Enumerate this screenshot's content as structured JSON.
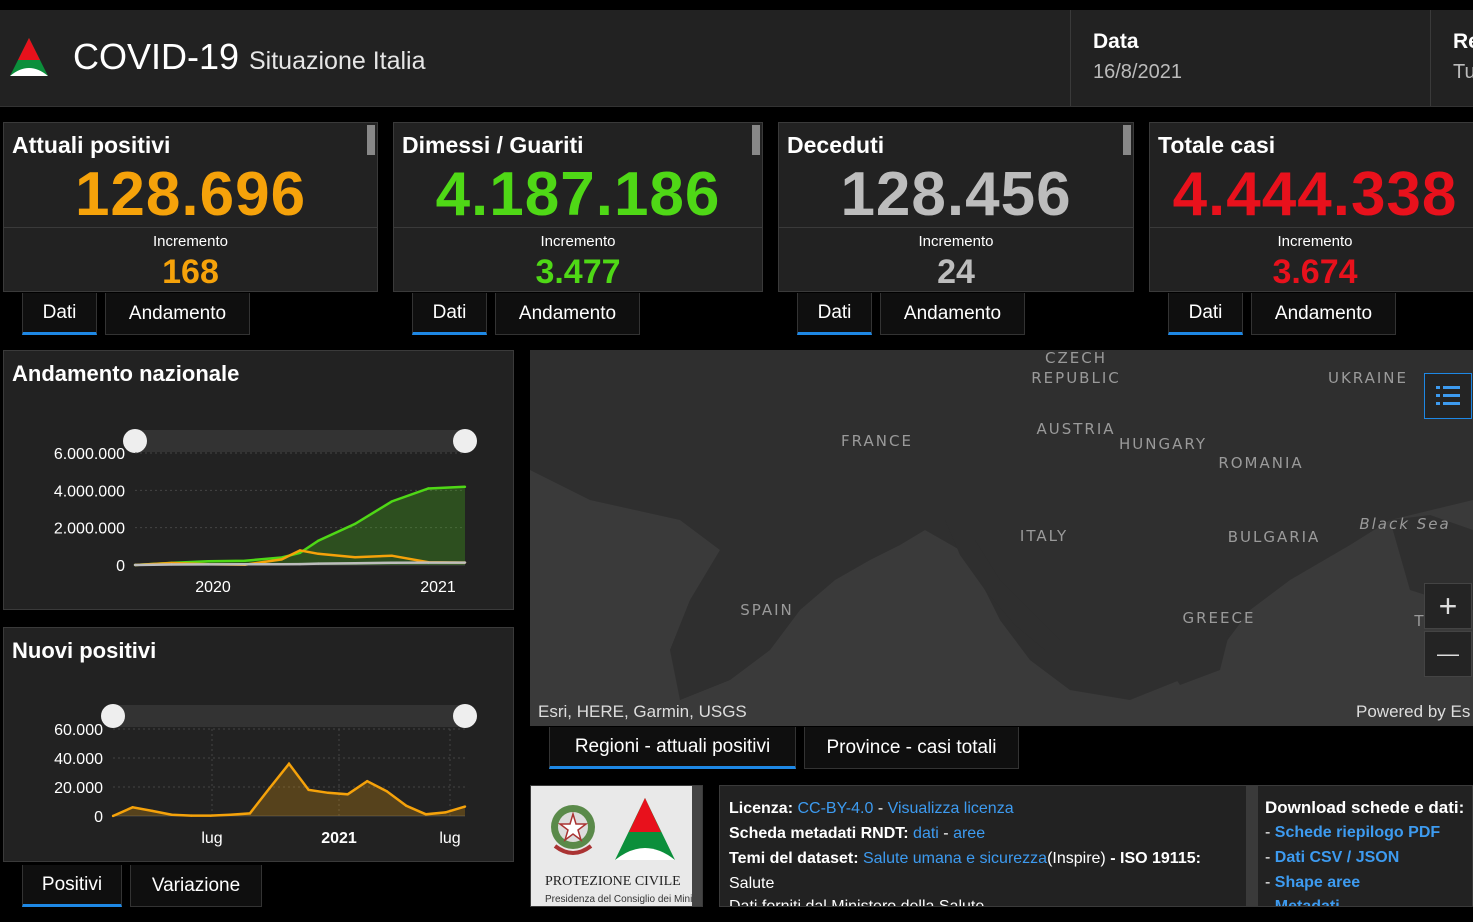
{
  "header": {
    "title": "COVID-19",
    "subtitle": "Situazione Italia",
    "date_label": "Data",
    "date_value": "16/8/2021",
    "region_label": "Re",
    "region_value": "Tu"
  },
  "cards": [
    {
      "title": "Attuali positivi",
      "value": "128.696",
      "inc_label": "Incremento",
      "inc_value": "168",
      "color": "#f5a20a"
    },
    {
      "title": "Dimessi / Guariti",
      "value": "4.187.186",
      "inc_label": "Incremento",
      "inc_value": "3.477",
      "color": "#4fd816"
    },
    {
      "title": "Deceduti",
      "value": "128.456",
      "inc_label": "Incremento",
      "inc_value": "24",
      "color": "#bdbdbd"
    },
    {
      "title": "Totale casi",
      "value": "4.444.338",
      "inc_label": "Incremento",
      "inc_value": "3.674",
      "color": "#e8111c"
    }
  ],
  "card_tabs": {
    "dati": "Dati",
    "andamento": "Andamento"
  },
  "andamento": {
    "title": "Andamento nazionale",
    "yticks": [
      "6.000.000",
      "4.000.000",
      "2.000.000",
      "0"
    ],
    "xticks": [
      "2020",
      "2021"
    ]
  },
  "nuovi": {
    "title": "Nuovi positivi",
    "yticks": [
      "60.000",
      "40.000",
      "20.000",
      "0"
    ],
    "xticks": [
      "lug",
      "2021",
      "lug"
    ],
    "tabs": {
      "positivi": "Positivi",
      "variazione": "Variazione"
    }
  },
  "map": {
    "labels": [
      "CZECH",
      "REPUBLIC",
      "UKRAINE",
      "AUSTRIA",
      "FRANCE",
      "HUNGARY",
      "ROMANIA",
      "Black Sea",
      "ITALY",
      "BULGARIA",
      "SPAIN",
      "GREECE",
      "T"
    ],
    "attribution_left": "Esri, HERE, Garmin, USGS",
    "attribution_right": "Powered by Es",
    "zoom_in": "+",
    "zoom_out": "—",
    "tabs": {
      "regioni": "Regioni - attuali positivi",
      "province": "Province - casi totali"
    }
  },
  "logo": {
    "line1": "PROTEZIONE CIVILE",
    "line2": "Presidenza del Consiglio dei Ministri"
  },
  "info": {
    "licenza_label": "Licenza:",
    "licenza_link": "CC-BY-4.0",
    "dash1": "-",
    "visualizza": "Visualizza licenza",
    "scheda_label": "Scheda metadati RNDT:",
    "dati_link": "dati",
    "dash2": "-",
    "aree_link": "aree",
    "temi_label": "Temi del dataset:",
    "temi_link": "Salute umana e sicurezza",
    "inspire": "(Inspire)",
    "iso": "- ISO 19115:",
    "salute": "Salute",
    "cut_line": "Dati forniti dal Ministero della Salute"
  },
  "download": {
    "title": "Download schede e dati:",
    "items": [
      "Schede riepilogo PDF",
      "Dati CSV / JSON",
      "Shape aree",
      "Metadati"
    ]
  },
  "chart_data": [
    {
      "type": "area",
      "title": "Andamento nazionale",
      "xlabel": "",
      "ylabel": "",
      "x": [
        "2020-02",
        "2020-04",
        "2020-06",
        "2020-08",
        "2020-10",
        "2020-11",
        "2020-12",
        "2021-02",
        "2021-04",
        "2021-06",
        "2021-08"
      ],
      "ylim": [
        0,
        6000000
      ],
      "series": [
        {
          "values": [
            0,
            110000,
            200000,
            230000,
            400000,
            650000,
            1300000,
            2200000,
            3400000,
            4100000,
            4187186
          ],
          "color": "#4fd816"
        },
        {
          "values": [
            1500,
            105000,
            40000,
            15000,
            300000,
            780000,
            600000,
            420000,
            500000,
            150000,
            128696
          ],
          "color": "#f5a20a"
        },
        {
          "values": [
            0,
            28000,
            34000,
            35000,
            37000,
            50000,
            75000,
            95000,
            117000,
            127000,
            128456
          ],
          "color": "#bdbdbd"
        }
      ]
    },
    {
      "type": "area",
      "title": "Nuovi positivi",
      "xlabel": "",
      "ylabel": "",
      "x": [
        "2020-02",
        "2020-03",
        "2020-04",
        "2020-05",
        "2020-06",
        "2020-07",
        "2020-08",
        "2020-09",
        "2020-10",
        "2020-11",
        "2020-12",
        "2021-01",
        "2021-02",
        "2021-03",
        "2021-04",
        "2021-05",
        "2021-06",
        "2021-07",
        "2021-08"
      ],
      "ylim": [
        0,
        60000
      ],
      "series": [
        {
          "values": [
            0,
            6000,
            3500,
            900,
            300,
            250,
            900,
            1800,
            19000,
            36000,
            18000,
            16000,
            15000,
            24000,
            17000,
            7000,
            1200,
            2500,
            6500
          ],
          "color": "#f5a20a"
        }
      ]
    }
  ]
}
